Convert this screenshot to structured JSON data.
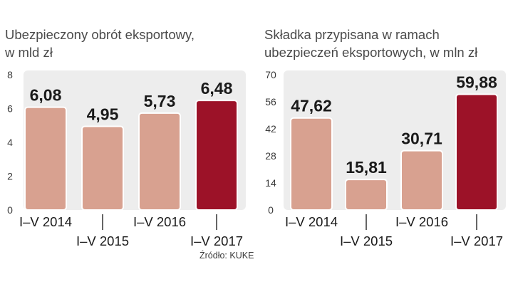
{
  "chart_data": [
    {
      "type": "bar",
      "title": "Ubezpieczony obrót eksportowy, w mld zł",
      "title_lines": [
        "Ubezpieczony obrót eksportowy,",
        "w mld zł"
      ],
      "categories": [
        "I–V 2014",
        "I–V 2015",
        "I–V 2016",
        "I–V 2017"
      ],
      "values": [
        6.08,
        4.95,
        5.73,
        6.48
      ],
      "value_labels": [
        "6,08",
        "4,95",
        "5,73",
        "6,48"
      ],
      "ylim": [
        0,
        8
      ],
      "yticks": [
        0,
        2,
        4,
        6,
        8
      ],
      "xlabel": "",
      "ylabel": ""
    },
    {
      "type": "bar",
      "title": "Składka przypisana w ramach ubezpieczeń eksportowych, w mln zł",
      "title_lines": [
        "Składka przypisana w ramach",
        "ubezpieczeń eksportowych, w mln zł"
      ],
      "categories": [
        "I–V 2014",
        "I–V 2015",
        "I–V 2016",
        "I–V 2017"
      ],
      "values": [
        47.62,
        15.81,
        30.71,
        59.88
      ],
      "value_labels": [
        "47,62",
        "15,81",
        "30,71",
        "59,88"
      ],
      "ylim": [
        0,
        70
      ],
      "yticks": [
        0,
        14,
        28,
        42,
        56,
        70
      ],
      "xlabel": "",
      "ylabel": ""
    }
  ],
  "colors": {
    "bar_normal": "#d8a190",
    "bar_highlight": "#9c1228",
    "plot_background": "#ededed",
    "text": "#1a1a1a",
    "tick_text": "#3a3a3a"
  },
  "source": "Źródło: KUKE"
}
